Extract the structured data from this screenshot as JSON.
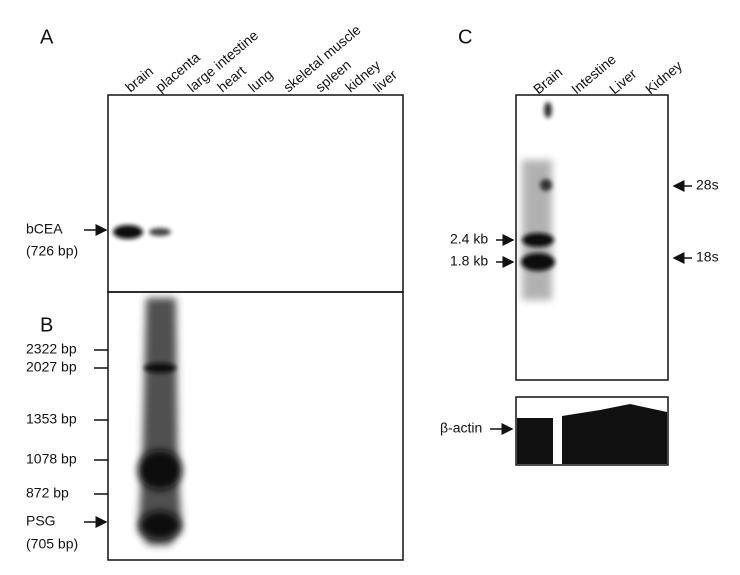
{
  "panels": {
    "a": {
      "label": "A",
      "lanes": [
        "brain",
        "placenta",
        "large intestine",
        "heart",
        "lung",
        "skeletal muscle",
        "spleen",
        "kidney",
        "liver"
      ],
      "marker": "bCEA",
      "marker_size": "(726 bp)"
    },
    "b": {
      "label": "B",
      "markers": [
        "2322 bp",
        "2027 bp",
        "1353 bp",
        "1078 bp",
        "872 bp"
      ],
      "band": "PSG",
      "band_size": "(705 bp)"
    },
    "c": {
      "label": "C",
      "lanes": [
        "Brain",
        "Intestine",
        "Liver",
        "Kidney"
      ],
      "left_markers": [
        "2.4 kb",
        "1.8 kb"
      ],
      "right_markers": [
        "28s",
        "18s"
      ],
      "control": "β-actin"
    }
  }
}
